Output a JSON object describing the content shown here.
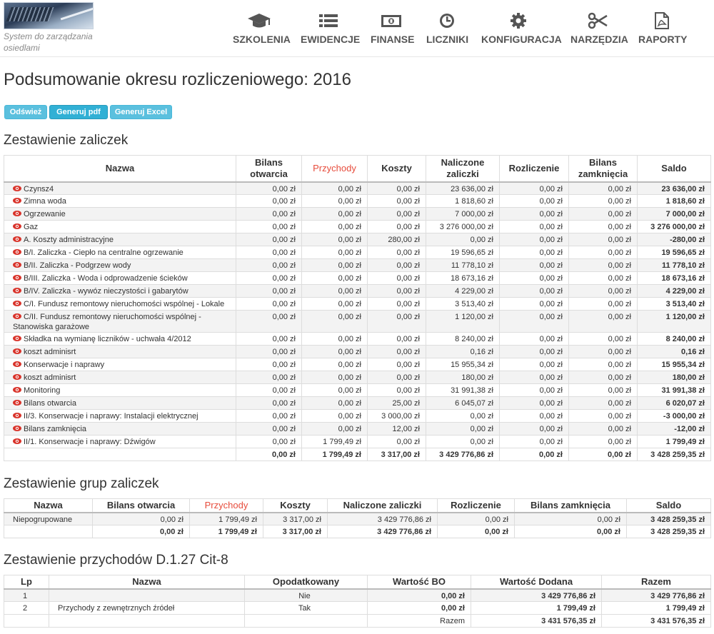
{
  "app": {
    "tagline": "System do zarządzania osiedlami"
  },
  "nav": [
    {
      "label": "SZKOLENIA",
      "icon": "graduation-cap-icon"
    },
    {
      "label": "EWIDENCJE",
      "icon": "list-icon"
    },
    {
      "label": "FINANSE",
      "icon": "money-icon"
    },
    {
      "label": "LICZNIKI",
      "icon": "clock-icon"
    },
    {
      "label": "KONFIGURACJA",
      "icon": "gear-icon"
    },
    {
      "label": "NARZĘDZIA",
      "icon": "scissors-icon"
    },
    {
      "label": "RAPORTY",
      "icon": "pdf-file-icon"
    }
  ],
  "page": {
    "title": "Podsumowanie okresu rozliczeniowego: 2016"
  },
  "buttons": {
    "refresh": "Odśwież",
    "pdf": "Generuj pdf",
    "excel": "Generuj Excel"
  },
  "colors": {
    "accent": "#5bc0de",
    "accent_dark": "#31b0d5",
    "highlight_header": "#e74c3c",
    "eye_icon": "#d9342b"
  },
  "advances": {
    "heading": "Zestawienie zaliczek",
    "columns": [
      "Nazwa",
      "Bilans otwarcia",
      "Przychody",
      "Koszty",
      "Naliczone zaliczki",
      "Rozliczenie",
      "Bilans zamknięcia",
      "Saldo"
    ],
    "rows": [
      {
        "name": "Czynsz4",
        "cells": [
          "0,00 zł",
          "0,00 zł",
          "0,00 zł",
          "23 636,00 zł",
          "0,00 zł",
          "0,00 zł",
          "23 636,00 zł"
        ]
      },
      {
        "name": "Zimna woda",
        "cells": [
          "0,00 zł",
          "0,00 zł",
          "0,00 zł",
          "1 818,60 zł",
          "0,00 zł",
          "0,00 zł",
          "1 818,60 zł"
        ]
      },
      {
        "name": "Ogrzewanie",
        "cells": [
          "0,00 zł",
          "0,00 zł",
          "0,00 zł",
          "7 000,00 zł",
          "0,00 zł",
          "0,00 zł",
          "7 000,00 zł"
        ]
      },
      {
        "name": "Gaz",
        "cells": [
          "0,00 zł",
          "0,00 zł",
          "0,00 zł",
          "3 276 000,00 zł",
          "0,00 zł",
          "0,00 zł",
          "3 276 000,00 zł"
        ]
      },
      {
        "name": "A. Koszty administracyjne",
        "cells": [
          "0,00 zł",
          "0,00 zł",
          "280,00 zł",
          "0,00 zł",
          "0,00 zł",
          "0,00 zł",
          "-280,00 zł"
        ]
      },
      {
        "name": "B/I. Zaliczka - Ciepło na centralne ogrzewanie",
        "cells": [
          "0,00 zł",
          "0,00 zł",
          "0,00 zł",
          "19 596,65 zł",
          "0,00 zł",
          "0,00 zł",
          "19 596,65 zł"
        ]
      },
      {
        "name": "B/II. Zaliczka - Podgrzew wody",
        "cells": [
          "0,00 zł",
          "0,00 zł",
          "0,00 zł",
          "11 778,10 zł",
          "0,00 zł",
          "0,00 zł",
          "11 778,10 zł"
        ]
      },
      {
        "name": "B/III. Zaliczka - Woda i odprowadzenie ścieków",
        "cells": [
          "0,00 zł",
          "0,00 zł",
          "0,00 zł",
          "18 673,16 zł",
          "0,00 zł",
          "0,00 zł",
          "18 673,16 zł"
        ]
      },
      {
        "name": "B/IV. Zaliczka - wywóz nieczystości i gabarytów",
        "cells": [
          "0,00 zł",
          "0,00 zł",
          "0,00 zł",
          "4 229,00 zł",
          "0,00 zł",
          "0,00 zł",
          "4 229,00 zł"
        ]
      },
      {
        "name": "C/I. Fundusz remontowy nieruchomości wspólnej - Lokale",
        "cells": [
          "0,00 zł",
          "0,00 zł",
          "0,00 zł",
          "3 513,40 zł",
          "0,00 zł",
          "0,00 zł",
          "3 513,40 zł"
        ]
      },
      {
        "name": "C/II. Fundusz remontowy nieruchomości wspólnej - Stanowiska garażowe",
        "cells": [
          "0,00 zł",
          "0,00 zł",
          "0,00 zł",
          "1 120,00 zł",
          "0,00 zł",
          "0,00 zł",
          "1 120,00 zł"
        ]
      },
      {
        "name": "Składka na wymianę liczników - uchwała 4/2012",
        "cells": [
          "0,00 zł",
          "0,00 zł",
          "0,00 zł",
          "8 240,00 zł",
          "0,00 zł",
          "0,00 zł",
          "8 240,00 zł"
        ]
      },
      {
        "name": "koszt adminisrt",
        "cells": [
          "0,00 zł",
          "0,00 zł",
          "0,00 zł",
          "0,16 zł",
          "0,00 zł",
          "0,00 zł",
          "0,16 zł"
        ]
      },
      {
        "name": "Konserwacje i naprawy",
        "cells": [
          "0,00 zł",
          "0,00 zł",
          "0,00 zł",
          "15 955,34 zł",
          "0,00 zł",
          "0,00 zł",
          "15 955,34 zł"
        ]
      },
      {
        "name": "koszt adminisrt",
        "cells": [
          "0,00 zł",
          "0,00 zł",
          "0,00 zł",
          "180,00 zł",
          "0,00 zł",
          "0,00 zł",
          "180,00 zł"
        ]
      },
      {
        "name": "Monitoring",
        "cells": [
          "0,00 zł",
          "0,00 zł",
          "0,00 zł",
          "31 991,38 zł",
          "0,00 zł",
          "0,00 zł",
          "31 991,38 zł"
        ]
      },
      {
        "name": "Bilans otwarcia",
        "cells": [
          "0,00 zł",
          "0,00 zł",
          "25,00 zł",
          "6 045,07 zł",
          "0,00 zł",
          "0,00 zł",
          "6 020,07 zł"
        ]
      },
      {
        "name": "II/3. Konserwacje i naprawy: Instalacji elektrycznej",
        "cells": [
          "0,00 zł",
          "0,00 zł",
          "3 000,00 zł",
          "0,00 zł",
          "0,00 zł",
          "0,00 zł",
          "-3 000,00 zł"
        ]
      },
      {
        "name": "Bilans zamknięcia",
        "cells": [
          "0,00 zł",
          "0,00 zł",
          "12,00 zł",
          "0,00 zł",
          "0,00 zł",
          "0,00 zł",
          "-12,00 zł"
        ]
      },
      {
        "name": "II/1. Konserwacje i naprawy: Dźwigów",
        "cells": [
          "0,00 zł",
          "1 799,49 zł",
          "0,00 zł",
          "0,00 zł",
          "0,00 zł",
          "0,00 zł",
          "1 799,49 zł"
        ]
      }
    ],
    "totals": [
      "0,00 zł",
      "1 799,49 zł",
      "3 317,00 zł",
      "3 429 776,86 zł",
      "0,00 zł",
      "0,00 zł",
      "3 428 259,35 zł"
    ]
  },
  "groups": {
    "heading": "Zestawienie grup zaliczek",
    "columns": [
      "Nazwa",
      "Bilans otwarcia",
      "Przychody",
      "Koszty",
      "Naliczone zaliczki",
      "Rozliczenie",
      "Bilans zamknięcia",
      "Saldo"
    ],
    "rows": [
      {
        "name": "Niepogrupowane",
        "cells": [
          "0,00 zł",
          "1 799,49 zł",
          "3 317,00 zł",
          "3 429 776,86 zł",
          "0,00 zł",
          "0,00 zł",
          "3 428 259,35 zł"
        ]
      }
    ],
    "totals": [
      "0,00 zł",
      "1 799,49 zł",
      "3 317,00 zł",
      "3 429 776,86 zł",
      "0,00 zł",
      "0,00 zł",
      "3 428 259,35 zł"
    ]
  },
  "revenues": {
    "heading": "Zestawienie przychodów D.1.27 Cit-8",
    "columns": [
      "Lp",
      "Nazwa",
      "Opodatkowany",
      "Wartość BO",
      "Wartość Dodana",
      "Razem"
    ],
    "rows": [
      {
        "lp": "1",
        "name": "",
        "taxed": "Nie",
        "bo": "0,00 zł",
        "added": "3 429 776,86 zł",
        "total": "3 429 776,86 zł"
      },
      {
        "lp": "2",
        "name": "Przychody z zewnętrznych źródeł",
        "taxed": "Tak",
        "bo": "0,00 zł",
        "added": "1 799,49 zł",
        "total": "1 799,49 zł"
      }
    ],
    "footer": {
      "label": "Razem",
      "added": "3 431 576,35 zł",
      "total": "3 431 576,35 zł"
    }
  }
}
